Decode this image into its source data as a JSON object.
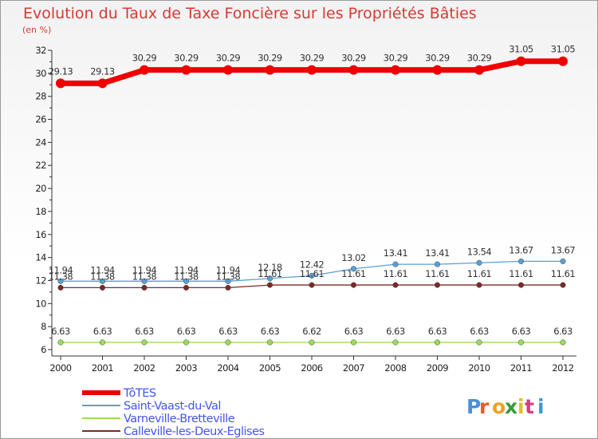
{
  "chart_data": {
    "type": "line",
    "title": "Evolution du Taux de Taxe Foncière sur les Propriétés Bâties",
    "subtitle": "(en %)",
    "categories": [
      "2000",
      "2001",
      "2002",
      "2003",
      "2004",
      "2005",
      "2006",
      "2007",
      "2008",
      "2009",
      "2010",
      "2011",
      "2012"
    ],
    "ylim": [
      6,
      32
    ],
    "yticks": [
      6,
      8,
      10,
      12,
      14,
      16,
      18,
      20,
      22,
      24,
      26,
      28,
      30,
      32
    ],
    "series": [
      {
        "name": "TôTES",
        "color": "#ee0000",
        "values": [
          29.13,
          29.13,
          30.29,
          30.29,
          30.29,
          30.29,
          30.29,
          30.29,
          30.29,
          30.29,
          30.29,
          31.05,
          31.05
        ],
        "labels": [
          "29.13",
          "29.13",
          "30.29",
          "30.29",
          "30.29",
          "30.29",
          "30.29",
          "30.29",
          "30.29",
          "30.29",
          "30.29",
          "31.05",
          "31.05"
        ]
      },
      {
        "name": "Saint-Vaast-du-Val",
        "color": "#5a9fd6",
        "values": [
          11.94,
          11.94,
          11.94,
          11.94,
          11.94,
          12.18,
          12.42,
          13.02,
          13.41,
          13.41,
          13.54,
          13.67,
          13.67
        ],
        "labels": [
          "11.94",
          "11.94",
          "11.94",
          "11.94",
          "11.94",
          "12.18",
          "12.42",
          "13.02",
          "13.41",
          "13.41",
          "13.54",
          "13.67",
          "13.67"
        ]
      },
      {
        "name": "Varneville-Bretteville",
        "color": "#99dd55",
        "values": [
          6.63,
          6.63,
          6.63,
          6.63,
          6.63,
          6.63,
          6.62,
          6.63,
          6.63,
          6.63,
          6.63,
          6.63,
          6.63
        ],
        "labels": [
          "6.63",
          "6.63",
          "6.63",
          "6.63",
          "6.63",
          "6.63",
          "6.62",
          "6.63",
          "6.63",
          "6.63",
          "6.63",
          "6.63",
          "6.63"
        ]
      },
      {
        "name": "Calleville-les-Deux-Eglises",
        "color": "#7a2a2a",
        "values": [
          11.38,
          11.38,
          11.38,
          11.38,
          11.38,
          11.61,
          11.61,
          11.61,
          11.61,
          11.61,
          11.61,
          11.61,
          11.61
        ],
        "labels": [
          "11.38",
          "11.38",
          "11.38",
          "11.38",
          "11.38",
          "11.61",
          "11.61",
          "11.61",
          "11.61",
          "11.61",
          "11.61",
          "11.61",
          "11.61"
        ]
      }
    ],
    "legend": [
      "TôTES",
      "Saint-Vaast-du-Val",
      "Varneville-Bretteville",
      "Calleville-les-Deux-Eglises"
    ]
  },
  "logo": {
    "text": "Proxiti"
  }
}
